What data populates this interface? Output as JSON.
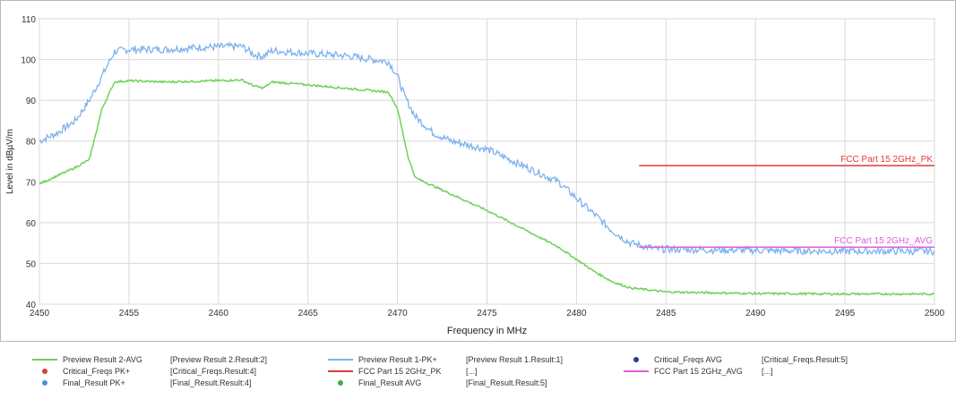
{
  "chart_data": {
    "type": "line",
    "xlabel": "Frequency in MHz",
    "ylabel": "Level in dBµV/m",
    "xlim": [
      2450,
      2500
    ],
    "ylim": [
      40,
      110
    ],
    "x_ticks": [
      2450,
      2455,
      2460,
      2465,
      2470,
      2475,
      2480,
      2485,
      2490,
      2495,
      2500
    ],
    "y_ticks": [
      40,
      50,
      60,
      70,
      80,
      90,
      100,
      110
    ],
    "grid": true,
    "series": [
      {
        "name": "Preview Result 1-PK+",
        "color": "#7fb2ee",
        "x": [
          2450,
          2451,
          2452,
          2452.8,
          2453.5,
          2454.2,
          2455,
          2457,
          2459,
          2461.3,
          2462,
          2462.5,
          2463,
          2465,
          2467,
          2469.5,
          2470,
          2470.4,
          2471,
          2472,
          2473,
          2475,
          2477,
          2479,
          2480,
          2481,
          2482,
          2483,
          2483.5,
          2484.5,
          2490,
          2495,
          2500
        ],
        "y": [
          80,
          82,
          85,
          90,
          96,
          102,
          102.5,
          102.5,
          103,
          103.3,
          101.2,
          100.8,
          102.2,
          101.5,
          101,
          99.5,
          96,
          91,
          86,
          82,
          80,
          78,
          74,
          70,
          66,
          62,
          58,
          55,
          54.5,
          53.5,
          53.2,
          53,
          53
        ]
      },
      {
        "name": "Preview Result 2-AVG",
        "color": "#6ed25a",
        "x": [
          2450,
          2451,
          2452,
          2452.8,
          2453.5,
          2454.2,
          2455,
          2457,
          2459,
          2461.3,
          2462,
          2462.5,
          2463,
          2465,
          2467,
          2469.5,
          2470,
          2470.6,
          2471,
          2472,
          2473,
          2475,
          2477,
          2479,
          2480,
          2481,
          2482,
          2483,
          2485,
          2490,
          2495,
          2500
        ],
        "y": [
          69.5,
          71.5,
          73.5,
          75.5,
          88,
          94.5,
          94.8,
          94.5,
          94.7,
          95,
          93.5,
          93,
          94.5,
          93.8,
          93,
          92,
          88,
          76,
          71,
          69,
          67,
          63,
          58.5,
          54,
          51,
          48,
          45.5,
          44,
          43,
          42.6,
          42.5,
          42.5
        ]
      },
      {
        "name": "FCC Part 15 2GHz_PK",
        "color": "#e03a3a",
        "x": [
          2483.5,
          2500
        ],
        "y": [
          74,
          74
        ]
      },
      {
        "name": "FCC Part 15 2GHz_AVG",
        "color": "#e05ce0",
        "x": [
          2483.5,
          2500
        ],
        "y": [
          54,
          54
        ]
      }
    ],
    "annotations": [
      {
        "text": "FCC Part 15 2GHz_PK",
        "x": 2500,
        "y": 74,
        "color": "#e03a3a"
      },
      {
        "text": "FCC Part 15 2GHz_AVG",
        "x": 2500,
        "y": 54,
        "color": "#e05ce0"
      }
    ]
  },
  "legend": {
    "items": [
      {
        "name": "Preview Result 2-AVG",
        "source": "[Preview Result 2.Result:2]",
        "symbol": "line",
        "color": "#6ed25a"
      },
      {
        "name": "Preview Result 1-PK+",
        "source": "[Preview Result 1.Result:1]",
        "symbol": "line",
        "color": "#7fb2ee"
      },
      {
        "name": "Critical_Freqs AVG",
        "source": "[Critical_Freqs.Result:5]",
        "symbol": "dot",
        "color": "#2e3a8c"
      },
      {
        "name": "Critical_Freqs PK+",
        "source": "[Critical_Freqs.Result:4]",
        "symbol": "dot",
        "color": "#e03a3a"
      },
      {
        "name": "FCC Part 15 2GHz_PK",
        "source": "[...]",
        "symbol": "line",
        "color": "#e03a3a"
      },
      {
        "name": "FCC Part 15 2GHz_AVG",
        "source": "[...]",
        "symbol": "line",
        "color": "#e05ce0"
      },
      {
        "name": "Final_Result PK+",
        "source": "[Final_Result.Result:4]",
        "symbol": "dot",
        "color": "#4a8fd8"
      },
      {
        "name": "Final_Result AVG",
        "source": "[Final_Result.Result:5]",
        "symbol": "dot",
        "color": "#3fae3f"
      }
    ]
  }
}
